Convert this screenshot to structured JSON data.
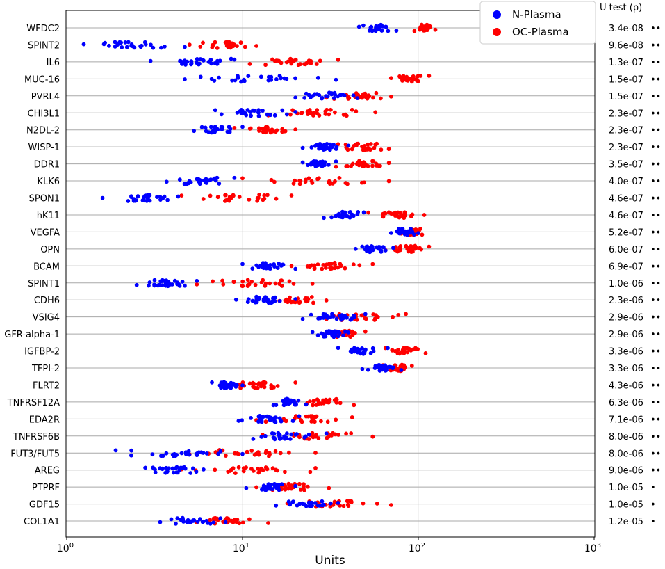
{
  "chart_data": {
    "type": "scatter",
    "subtype": "horizontal strip plot",
    "x_scale": "log",
    "xlim": [
      1,
      1000
    ],
    "xticks": [
      {
        "value": 1,
        "base": "10",
        "exp": "0"
      },
      {
        "value": 10,
        "base": "10",
        "exp": "1"
      },
      {
        "value": 100,
        "base": "10",
        "exp": "2"
      },
      {
        "value": 1000,
        "base": "10",
        "exp": "3"
      }
    ],
    "xlabel": "Units",
    "right_header": "U test (p)",
    "grid": "horizontal line per row, vertical gridlines at decades",
    "legend": {
      "placement": "top-right",
      "entries": [
        {
          "label": "N-Plasma",
          "color": "#0000ff"
        },
        {
          "label": "OC-Plasma",
          "color": "#ff0000"
        }
      ]
    },
    "colors": {
      "n_plasma": "#0000ff",
      "oc_plasma": "#ff0000",
      "row_line": "#a8a8a8",
      "vgrid": "#e6e6e6"
    },
    "rows": [
      {
        "marker": "WFDC2",
        "p": "3.4e-08",
        "stars": "••",
        "n_range": [
          46,
          75
        ],
        "oc_range": [
          95,
          125
        ]
      },
      {
        "marker": "SPINT2",
        "p": "9.6e-08",
        "stars": "••",
        "n_range": [
          1.25,
          4.7
        ],
        "oc_range": [
          5,
          12
        ]
      },
      {
        "marker": "IL6",
        "p": "1.3e-07",
        "stars": "••",
        "n_range": [
          3,
          9
        ],
        "oc_range": [
          11,
          35
        ]
      },
      {
        "marker": "MUC-16",
        "p": "1.5e-07",
        "stars": "••",
        "n_range": [
          4.7,
          34
        ],
        "oc_range": [
          70,
          115
        ]
      },
      {
        "marker": "PVRL4",
        "p": "1.5e-07",
        "stars": "••",
        "n_range": [
          20,
          45
        ],
        "oc_range": [
          30,
          70
        ]
      },
      {
        "marker": "CHI3L1",
        "p": "2.3e-07",
        "stars": "••",
        "n_range": [
          7,
          20
        ],
        "oc_range": [
          14,
          57
        ]
      },
      {
        "marker": "N2DL-2",
        "p": "2.3e-07",
        "stars": "••",
        "n_range": [
          5.3,
          10
        ],
        "oc_range": [
          9,
          20
        ]
      },
      {
        "marker": "WISP-1",
        "p": "2.3e-07",
        "stars": "••",
        "n_range": [
          22,
          40
        ],
        "oc_range": [
          35,
          68
        ]
      },
      {
        "marker": "DDR1",
        "p": "3.5e-07",
        "stars": "••",
        "n_range": [
          22,
          34
        ],
        "oc_range": [
          34,
          68
        ]
      },
      {
        "marker": "KLK6",
        "p": "4.0e-07",
        "stars": "••",
        "n_range": [
          3.7,
          9
        ],
        "oc_range": [
          10,
          68
        ]
      },
      {
        "marker": "SPON1",
        "p": "4.6e-07",
        "stars": "••",
        "n_range": [
          1.6,
          4.3
        ],
        "oc_range": [
          4.5,
          19
        ]
      },
      {
        "marker": "hK11",
        "p": "4.6e-07",
        "stars": "••",
        "n_range": [
          29,
          49
        ],
        "oc_range": [
          52,
          108
        ]
      },
      {
        "marker": "VEGFA",
        "p": "5.2e-07",
        "stars": "••",
        "n_range": [
          70,
          100
        ],
        "oc_range": [
          80,
          105
        ]
      },
      {
        "marker": "OPN",
        "p": "6.0e-07",
        "stars": "••",
        "n_range": [
          44,
          72
        ],
        "oc_range": [
          65,
          115
        ]
      },
      {
        "marker": "BCAM",
        "p": "6.9e-07",
        "stars": "••",
        "n_range": [
          10,
          20
        ],
        "oc_range": [
          19,
          55
        ]
      },
      {
        "marker": "SPINT1",
        "p": "1.0e-06",
        "stars": "••",
        "n_range": [
          2.5,
          5.5
        ],
        "oc_range": [
          5.5,
          25
        ]
      },
      {
        "marker": "CDH6",
        "p": "2.3e-06",
        "stars": "••",
        "n_range": [
          9.2,
          20
        ],
        "oc_range": [
          14,
          30
        ]
      },
      {
        "marker": "VSIG4",
        "p": "2.9e-06",
        "stars": "••",
        "n_range": [
          22,
          50
        ],
        "oc_range": [
          30,
          85
        ]
      },
      {
        "marker": "GFR-alpha-1",
        "p": "2.9e-06",
        "stars": "••",
        "n_range": [
          25,
          40
        ],
        "oc_range": [
          30,
          50
        ]
      },
      {
        "marker": "IGFBP-2",
        "p": "3.3e-06",
        "stars": "••",
        "n_range": [
          35,
          67
        ],
        "oc_range": [
          65,
          110
        ]
      },
      {
        "marker": "TFPI-2",
        "p": "3.3e-06",
        "stars": "••",
        "n_range": [
          48,
          80
        ],
        "oc_range": [
          63,
          92
        ]
      },
      {
        "marker": "FLRT2",
        "p": "4.3e-06",
        "stars": "••",
        "n_range": [
          6.7,
          10
        ],
        "oc_range": [
          8,
          20
        ]
      },
      {
        "marker": "TNFRSF12A",
        "p": "6.3e-06",
        "stars": "••",
        "n_range": [
          15,
          23
        ],
        "oc_range": [
          20,
          43
        ]
      },
      {
        "marker": "EDA2R",
        "p": "7.1e-06",
        "stars": "••",
        "n_range": [
          9.5,
          21
        ],
        "oc_range": [
          12,
          42
        ]
      },
      {
        "marker": "TNFRSF6B",
        "p": "8.0e-06",
        "stars": "••",
        "n_range": [
          11.5,
          30
        ],
        "oc_range": [
          13,
          55
        ]
      },
      {
        "marker": "FUT3/FUT5",
        "p": "8.0e-06",
        "stars": "••",
        "n_range": [
          1.9,
          10
        ],
        "oc_range": [
          5,
          26
        ]
      },
      {
        "marker": "AREG",
        "p": "9.0e-06",
        "stars": "••",
        "n_range": [
          2.8,
          6
        ],
        "oc_range": [
          4.5,
          26
        ]
      },
      {
        "marker": "PTPRF",
        "p": "1.0e-05",
        "stars": "•",
        "n_range": [
          10.5,
          20
        ],
        "oc_range": [
          12,
          31
        ]
      },
      {
        "marker": "GDF15",
        "p": "1.0e-05",
        "stars": "•",
        "n_range": [
          15.5,
          35
        ],
        "oc_range": [
          18,
          70
        ]
      },
      {
        "marker": "COL1A1",
        "p": "1.2e-05",
        "stars": "•",
        "n_range": [
          3.4,
          8
        ],
        "oc_range": [
          5.5,
          14
        ]
      }
    ]
  }
}
